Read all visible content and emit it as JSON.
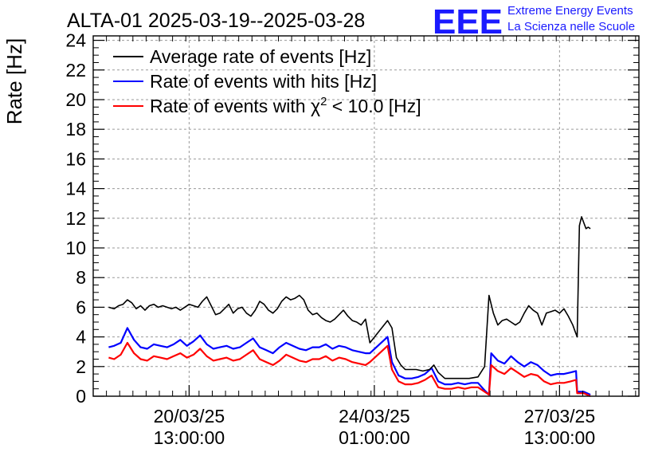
{
  "title": "ALTA-01 2025-03-19--2025-03-28",
  "logo": {
    "mark": "EEE",
    "line1": "Extreme Energy Events",
    "line2": "La Scienza nelle Scuole",
    "color": "#1a1aff"
  },
  "chart_data": {
    "type": "line",
    "ylabel": "Rate [Hz]",
    "xlabel": "",
    "xlim_hours_labeled": false,
    "ylim": [
      0,
      24.3
    ],
    "yticks": [
      0,
      2,
      4,
      6,
      8,
      10,
      12,
      14,
      16,
      18,
      20,
      22,
      24
    ],
    "ytick_labels": [
      "0",
      "2",
      "4",
      "6",
      "8",
      "10",
      "12",
      "14",
      "16",
      "18",
      "20",
      "22",
      "24"
    ],
    "x_range": [
      "2025-03-18T17:30",
      "2025-03-29T01:00"
    ],
    "x_ticks": [
      {
        "at": "2025-03-20T13:00",
        "line1": "20/03/25",
        "line2": "13:00:00"
      },
      {
        "at": "2025-03-24T01:00",
        "line1": "24/03/25",
        "line2": "01:00:00"
      },
      {
        "at": "2025-03-27T13:00",
        "line1": "27/03/25",
        "line2": "13:00:00"
      }
    ],
    "grid": true,
    "legend_position": "top-left",
    "series": [
      {
        "name": "Average rate of events [Hz]",
        "legend_main": "Average rate of events [Hz]",
        "color": "#000000",
        "x": [
          "2025-03-19T00:30",
          "2025-03-19T03:00",
          "2025-03-19T05:00",
          "2025-03-19T07:00",
          "2025-03-19T09:00",
          "2025-03-19T11:00",
          "2025-03-19T13:00",
          "2025-03-19T15:00",
          "2025-03-19T17:00",
          "2025-03-19T19:00",
          "2025-03-19T21:00",
          "2025-03-19T23:00",
          "2025-03-20T01:00",
          "2025-03-20T03:00",
          "2025-03-20T05:00",
          "2025-03-20T07:00",
          "2025-03-20T09:00",
          "2025-03-20T11:00",
          "2025-03-20T13:00",
          "2025-03-20T15:00",
          "2025-03-20T17:00",
          "2025-03-20T19:00",
          "2025-03-20T21:00",
          "2025-03-20T23:00",
          "2025-03-21T01:00",
          "2025-03-21T03:00",
          "2025-03-21T05:00",
          "2025-03-21T07:00",
          "2025-03-21T09:00",
          "2025-03-21T11:00",
          "2025-03-21T13:00",
          "2025-03-21T15:00",
          "2025-03-21T17:00",
          "2025-03-21T19:00",
          "2025-03-21T21:00",
          "2025-03-21T23:00",
          "2025-03-22T01:00",
          "2025-03-22T03:00",
          "2025-03-22T05:00",
          "2025-03-22T07:00",
          "2025-03-22T09:00",
          "2025-03-22T11:00",
          "2025-03-22T13:00",
          "2025-03-22T15:00",
          "2025-03-22T17:00",
          "2025-03-22T19:00",
          "2025-03-22T21:00",
          "2025-03-22T23:00",
          "2025-03-23T01:00",
          "2025-03-23T03:00",
          "2025-03-23T05:00",
          "2025-03-23T07:00",
          "2025-03-23T09:00",
          "2025-03-23T11:00",
          "2025-03-23T13:00",
          "2025-03-23T15:00",
          "2025-03-23T17:00",
          "2025-03-23T19:00",
          "2025-03-23T21:00",
          "2025-03-23T23:00",
          "2025-03-24T07:00",
          "2025-03-24T09:00",
          "2025-03-24T11:00",
          "2025-03-24T13:00",
          "2025-03-24T15:00",
          "2025-03-24T17:00",
          "2025-03-24T20:00",
          "2025-03-24T23:00",
          "2025-03-25T02:00",
          "2025-03-25T04:00",
          "2025-03-25T06:00",
          "2025-03-25T09:00",
          "2025-03-25T12:00",
          "2025-03-25T16:00",
          "2025-03-25T20:00",
          "2025-03-26T00:00",
          "2025-03-26T03:00",
          "2025-03-26T05:00",
          "2025-03-26T07:00",
          "2025-03-26T09:00",
          "2025-03-26T11:00",
          "2025-03-26T13:00",
          "2025-03-26T15:00",
          "2025-03-26T17:00",
          "2025-03-26T19:00",
          "2025-03-26T21:00",
          "2025-03-26T23:00",
          "2025-03-27T01:00",
          "2025-03-27T03:00",
          "2025-03-27T05:00",
          "2025-03-27T07:00",
          "2025-03-27T09:00",
          "2025-03-27T11:00",
          "2025-03-27T13:00",
          "2025-03-27T15:00",
          "2025-03-27T17:00",
          "2025-03-27T19:00",
          "2025-03-27T20:00",
          "2025-03-27T21:00",
          "2025-03-27T22:00",
          "2025-03-27T23:00",
          "2025-03-28T00:00",
          "2025-03-28T01:00",
          "2025-03-28T02:00",
          "2025-03-28T03:00"
        ],
        "y": [
          6.0,
          5.9,
          6.1,
          6.2,
          6.5,
          6.3,
          5.9,
          6.1,
          5.8,
          6.1,
          6.2,
          6.0,
          6.1,
          6.0,
          5.9,
          6.0,
          5.8,
          6.0,
          6.2,
          6.1,
          6.0,
          6.4,
          6.7,
          6.1,
          5.5,
          5.6,
          5.9,
          6.2,
          5.6,
          5.9,
          6.0,
          5.6,
          5.4,
          5.8,
          6.4,
          6.2,
          5.8,
          5.6,
          5.9,
          6.4,
          6.7,
          6.5,
          6.6,
          6.8,
          6.5,
          5.8,
          5.5,
          5.6,
          5.3,
          5.1,
          5.0,
          5.2,
          5.5,
          5.8,
          5.4,
          5.1,
          5.0,
          4.8,
          5.2,
          3.6,
          5.1,
          4.6,
          2.6,
          2.1,
          1.8,
          1.8,
          1.8,
          1.7,
          1.8,
          2.1,
          1.6,
          1.2,
          1.2,
          1.2,
          1.2,
          1.3,
          2.0,
          6.8,
          5.6,
          4.8,
          5.1,
          5.2,
          5.0,
          4.8,
          5.0,
          5.6,
          6.1,
          5.8,
          5.6,
          4.8,
          5.6,
          5.7,
          5.8,
          5.6,
          5.9,
          5.4,
          4.8,
          4.4,
          4.0,
          11.5,
          12.1,
          11.7,
          11.3,
          11.4,
          11.3
        ]
      },
      {
        "name": "Rate of events with hits [Hz]",
        "legend_main": "Rate of events with hits [Hz]",
        "color": "#0000ff",
        "x": [
          "2025-03-19T00:30",
          "2025-03-19T03:00",
          "2025-03-19T06:00",
          "2025-03-19T09:00",
          "2025-03-19T12:00",
          "2025-03-19T15:00",
          "2025-03-19T18:00",
          "2025-03-19T21:00",
          "2025-03-20T00:00",
          "2025-03-20T03:00",
          "2025-03-20T06:00",
          "2025-03-20T09:00",
          "2025-03-20T12:00",
          "2025-03-20T15:00",
          "2025-03-20T18:00",
          "2025-03-20T21:00",
          "2025-03-21T00:00",
          "2025-03-21T03:00",
          "2025-03-21T06:00",
          "2025-03-21T09:00",
          "2025-03-21T12:00",
          "2025-03-21T15:00",
          "2025-03-21T18:00",
          "2025-03-21T21:00",
          "2025-03-22T00:00",
          "2025-03-22T03:00",
          "2025-03-22T06:00",
          "2025-03-22T09:00",
          "2025-03-22T12:00",
          "2025-03-22T15:00",
          "2025-03-22T18:00",
          "2025-03-22T21:00",
          "2025-03-23T00:00",
          "2025-03-23T03:00",
          "2025-03-23T06:00",
          "2025-03-23T09:00",
          "2025-03-23T12:00",
          "2025-03-23T15:00",
          "2025-03-23T18:00",
          "2025-03-23T21:00",
          "2025-03-23T23:00",
          "2025-03-24T07:00",
          "2025-03-24T09:00",
          "2025-03-24T12:00",
          "2025-03-24T15:00",
          "2025-03-24T18:00",
          "2025-03-24T21:00",
          "2025-03-25T00:00",
          "2025-03-25T03:00",
          "2025-03-25T06:00",
          "2025-03-25T09:00",
          "2025-03-25T12:00",
          "2025-03-25T15:00",
          "2025-03-25T18:00",
          "2025-03-25T21:00",
          "2025-03-26T00:00",
          "2025-03-26T03:00",
          "2025-03-26T05:00",
          "2025-03-26T06:00",
          "2025-03-26T09:00",
          "2025-03-26T12:00",
          "2025-03-26T15:00",
          "2025-03-26T18:00",
          "2025-03-26T21:00",
          "2025-03-27T00:00",
          "2025-03-27T03:00",
          "2025-03-27T06:00",
          "2025-03-27T09:00",
          "2025-03-27T12:00",
          "2025-03-27T15:00",
          "2025-03-27T18:00",
          "2025-03-27T20:30",
          "2025-03-27T21:00",
          "2025-03-28T00:00",
          "2025-03-28T03:00"
        ],
        "y": [
          3.3,
          3.4,
          3.6,
          4.6,
          3.8,
          3.3,
          3.2,
          3.5,
          3.4,
          3.3,
          3.5,
          3.8,
          3.4,
          3.7,
          4.1,
          3.5,
          3.2,
          3.3,
          3.4,
          3.2,
          3.3,
          3.6,
          3.9,
          3.3,
          3.1,
          2.9,
          3.3,
          3.6,
          3.4,
          3.2,
          3.1,
          3.3,
          3.3,
          3.5,
          3.2,
          3.4,
          3.3,
          3.1,
          3.0,
          2.9,
          2.9,
          4.0,
          2.3,
          1.4,
          1.2,
          1.2,
          1.3,
          1.5,
          1.9,
          1.0,
          0.8,
          0.8,
          0.9,
          0.8,
          0.9,
          0.9,
          0.4,
          0.1,
          2.9,
          2.4,
          2.2,
          2.7,
          2.3,
          2.0,
          2.3,
          2.1,
          1.7,
          1.4,
          1.5,
          1.5,
          1.6,
          1.7,
          0.3,
          0.3,
          0.1
        ]
      },
      {
        "name": "Rate of events with χ² < 10.0 [Hz]",
        "legend_main": "Rate of events with χ",
        "legend_sup": "2",
        "legend_tail": " < 10.0 [Hz]",
        "color": "#ff0000",
        "x": [
          "2025-03-19T00:30",
          "2025-03-19T03:00",
          "2025-03-19T06:00",
          "2025-03-19T09:00",
          "2025-03-19T12:00",
          "2025-03-19T15:00",
          "2025-03-19T18:00",
          "2025-03-19T21:00",
          "2025-03-20T00:00",
          "2025-03-20T03:00",
          "2025-03-20T06:00",
          "2025-03-20T09:00",
          "2025-03-20T12:00",
          "2025-03-20T15:00",
          "2025-03-20T18:00",
          "2025-03-20T21:00",
          "2025-03-21T00:00",
          "2025-03-21T03:00",
          "2025-03-21T06:00",
          "2025-03-21T09:00",
          "2025-03-21T12:00",
          "2025-03-21T15:00",
          "2025-03-21T18:00",
          "2025-03-21T21:00",
          "2025-03-22T00:00",
          "2025-03-22T03:00",
          "2025-03-22T06:00",
          "2025-03-22T09:00",
          "2025-03-22T12:00",
          "2025-03-22T15:00",
          "2025-03-22T18:00",
          "2025-03-22T21:00",
          "2025-03-23T00:00",
          "2025-03-23T03:00",
          "2025-03-23T06:00",
          "2025-03-23T09:00",
          "2025-03-23T12:00",
          "2025-03-23T15:00",
          "2025-03-23T18:00",
          "2025-03-23T21:00",
          "2025-03-23T23:00",
          "2025-03-24T07:00",
          "2025-03-24T09:00",
          "2025-03-24T12:00",
          "2025-03-24T15:00",
          "2025-03-24T18:00",
          "2025-03-24T21:00",
          "2025-03-25T00:00",
          "2025-03-25T03:00",
          "2025-03-25T06:00",
          "2025-03-25T09:00",
          "2025-03-25T12:00",
          "2025-03-25T15:00",
          "2025-03-25T18:00",
          "2025-03-25T21:00",
          "2025-03-26T00:00",
          "2025-03-26T03:00",
          "2025-03-26T05:00",
          "2025-03-26T06:00",
          "2025-03-26T09:00",
          "2025-03-26T12:00",
          "2025-03-26T15:00",
          "2025-03-26T18:00",
          "2025-03-26T21:00",
          "2025-03-27T00:00",
          "2025-03-27T03:00",
          "2025-03-27T06:00",
          "2025-03-27T09:00",
          "2025-03-27T12:00",
          "2025-03-27T15:00",
          "2025-03-27T18:00",
          "2025-03-27T20:30",
          "2025-03-27T21:00",
          "2025-03-28T00:00",
          "2025-03-28T03:00"
        ],
        "y": [
          2.6,
          2.5,
          2.8,
          3.6,
          2.9,
          2.5,
          2.4,
          2.7,
          2.6,
          2.5,
          2.7,
          2.9,
          2.6,
          2.8,
          3.2,
          2.7,
          2.4,
          2.5,
          2.6,
          2.4,
          2.5,
          2.8,
          3.1,
          2.5,
          2.3,
          2.1,
          2.4,
          2.8,
          2.6,
          2.4,
          2.3,
          2.5,
          2.5,
          2.7,
          2.4,
          2.6,
          2.5,
          2.3,
          2.2,
          2.1,
          2.3,
          3.4,
          1.8,
          1.0,
          0.8,
          0.8,
          0.9,
          1.1,
          1.4,
          0.6,
          0.5,
          0.5,
          0.6,
          0.5,
          0.6,
          0.6,
          0.3,
          0.1,
          2.1,
          1.7,
          1.5,
          1.9,
          1.6,
          1.3,
          1.5,
          1.4,
          1.0,
          0.8,
          0.9,
          0.9,
          1.0,
          1.1,
          0.2,
          0.2,
          0.0
        ]
      }
    ]
  }
}
